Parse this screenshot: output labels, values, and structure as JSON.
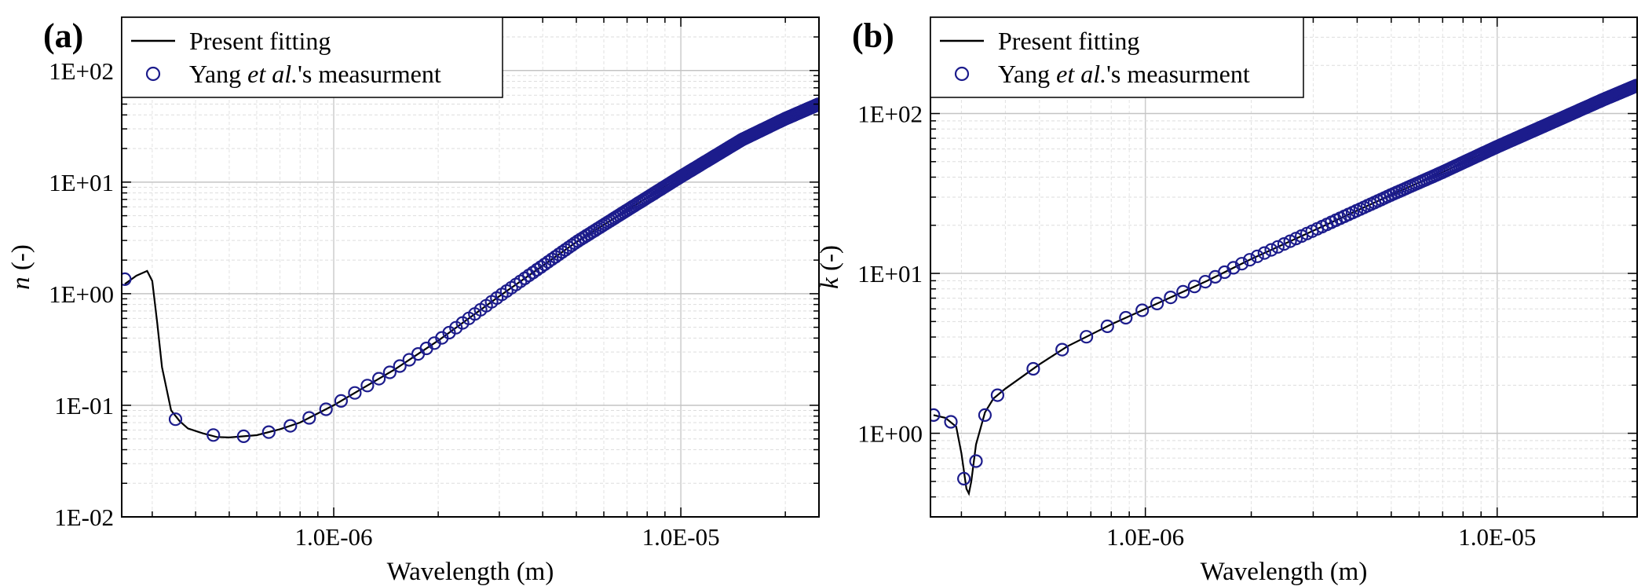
{
  "chart_data": [
    {
      "type": "line",
      "panel_label": "(a)",
      "xlabel": "Wavelength (m)",
      "ylabel_symbol": "n",
      "ylabel_unit": " (-)",
      "xscale": "log",
      "yscale": "log",
      "xlim": [
        2.45e-07,
        2.5e-05
      ],
      "ylim": [
        0.01,
        300
      ],
      "x_ticks": [
        {
          "value": 1e-06,
          "label": "1.0E-06"
        },
        {
          "value": 1e-05,
          "label": "1.0E-05"
        }
      ],
      "y_ticks": [
        {
          "value": 0.01,
          "label": "1E-02"
        },
        {
          "value": 0.1,
          "label": "1E-01"
        },
        {
          "value": 1,
          "label": "1E+00"
        },
        {
          "value": 10,
          "label": "1E+01"
        },
        {
          "value": 100,
          "label": "1E+02"
        }
      ],
      "grid": true,
      "legend_position": "top-left",
      "series": [
        {
          "name": "Present fitting",
          "style": "line",
          "color": "#000000",
          "points": [
            [
              2.5e-07,
              1.22
            ],
            [
              2.7e-07,
              1.45
            ],
            [
              2.9e-07,
              1.6
            ],
            [
              3e-07,
              1.3
            ],
            [
              3.1e-07,
              0.55
            ],
            [
              3.2e-07,
              0.22
            ],
            [
              3.4e-07,
              0.09
            ],
            [
              3.6e-07,
              0.072
            ],
            [
              3.8e-07,
              0.062
            ],
            [
              4.2e-07,
              0.056
            ],
            [
              4.6e-07,
              0.052
            ],
            [
              5e-07,
              0.0515
            ],
            [
              6e-07,
              0.054
            ],
            [
              7e-07,
              0.061
            ],
            [
              8e-07,
              0.07
            ],
            [
              1e-06,
              0.1
            ],
            [
              1.5e-06,
              0.21
            ],
            [
              2e-06,
              0.38
            ],
            [
              3e-06,
              0.95
            ],
            [
              5e-06,
              2.9
            ],
            [
              7e-06,
              5.6
            ],
            [
              1e-05,
              11.2
            ],
            [
              1.5e-05,
              24
            ],
            [
              2e-05,
              37
            ],
            [
              2.5e-05,
              50
            ]
          ]
        },
        {
          "name": "Yang et al.'s measurment",
          "name_parts": [
            "Yang ",
            "et al.",
            "'s measurment"
          ],
          "style": "markers",
          "marker": "open-circle",
          "color": "#1c1c8c",
          "x_start": 2.5e-07,
          "x_step": 1e-07,
          "x_stop": 2.5e-05,
          "curve": [
            [
              2.5e-07,
              1.35
            ],
            [
              2.9e-07,
              1.6
            ],
            [
              3.05e-07,
              0.9
            ],
            [
              3.2e-07,
              0.22
            ],
            [
              3.5e-07,
              0.075
            ],
            [
              3.8e-07,
              0.062
            ],
            [
              4.2e-07,
              0.056
            ],
            [
              5e-07,
              0.0515
            ],
            [
              6e-07,
              0.054
            ],
            [
              7e-07,
              0.061
            ],
            [
              8e-07,
              0.07
            ],
            [
              1e-06,
              0.1
            ],
            [
              1.5e-06,
              0.21
            ],
            [
              2e-06,
              0.38
            ],
            [
              3e-06,
              0.95
            ],
            [
              5e-06,
              2.9
            ],
            [
              7e-06,
              5.6
            ],
            [
              1e-05,
              11.2
            ],
            [
              1.5e-05,
              24
            ],
            [
              2e-05,
              37
            ],
            [
              2.5e-05,
              50
            ]
          ]
        }
      ]
    },
    {
      "type": "line",
      "panel_label": "(b)",
      "xlabel": "Wavelength (m)",
      "ylabel_symbol": "k",
      "ylabel_unit": " (-)",
      "xscale": "log",
      "yscale": "log",
      "xlim": [
        2.45e-07,
        2.5e-05
      ],
      "ylim": [
        0.3,
        400
      ],
      "x_ticks": [
        {
          "value": 1e-06,
          "label": "1.0E-06"
        },
        {
          "value": 1e-05,
          "label": "1.0E-05"
        }
      ],
      "y_ticks": [
        {
          "value": 1,
          "label": "1E+00"
        },
        {
          "value": 10,
          "label": "1E+01"
        },
        {
          "value": 100,
          "label": "1E+02"
        }
      ],
      "grid": true,
      "legend_position": "top-left",
      "series": [
        {
          "name": "Present fitting",
          "style": "line",
          "color": "#000000",
          "points": [
            [
              2.5e-07,
              1.3
            ],
            [
              2.7e-07,
              1.25
            ],
            [
              2.9e-07,
              1.1
            ],
            [
              3e-07,
              0.75
            ],
            [
              3.1e-07,
              0.45
            ],
            [
              3.15e-07,
              0.42
            ],
            [
              3.2e-07,
              0.5
            ],
            [
              3.3e-07,
              0.85
            ],
            [
              3.5e-07,
              1.35
            ],
            [
              3.7e-07,
              1.65
            ],
            [
              4e-07,
              1.9
            ],
            [
              5e-07,
              2.7
            ],
            [
              6e-07,
              3.5
            ],
            [
              8e-07,
              4.8
            ],
            [
              1e-06,
              6.0
            ],
            [
              1.5e-06,
              9.0
            ],
            [
              2e-06,
              12.3
            ],
            [
              3e-06,
              18.5
            ],
            [
              5e-06,
              31
            ],
            [
              7e-06,
              43
            ],
            [
              1e-05,
              62
            ],
            [
              1.5e-05,
              92
            ],
            [
              2e-05,
              122
            ],
            [
              2.5e-05,
              150
            ]
          ]
        },
        {
          "name": "Yang et al.'s measurment",
          "name_parts": [
            "Yang ",
            "et al.",
            "'s measurment"
          ],
          "style": "markers",
          "marker": "open-circle",
          "color": "#1c1c8c",
          "explicit": [
            [
              2.5e-07,
              1.3
            ],
            [
              2.8e-07,
              1.18
            ],
            [
              3.05e-07,
              0.52
            ],
            [
              3.3e-07,
              0.67
            ],
            [
              3.5e-07,
              1.3
            ]
          ],
          "x_start": 3.8e-07,
          "x_step": 1e-07,
          "x_stop": 2.5e-05,
          "curve": [
            [
              3.5e-07,
              1.35
            ],
            [
              3.7e-07,
              1.65
            ],
            [
              4e-07,
              1.9
            ],
            [
              5e-07,
              2.7
            ],
            [
              6e-07,
              3.5
            ],
            [
              8e-07,
              4.8
            ],
            [
              1e-06,
              6.0
            ],
            [
              1.5e-06,
              9.0
            ],
            [
              2e-06,
              12.3
            ],
            [
              3e-06,
              18.5
            ],
            [
              5e-06,
              31
            ],
            [
              7e-06,
              43
            ],
            [
              1e-05,
              62
            ],
            [
              1.5e-05,
              92
            ],
            [
              2e-05,
              122
            ],
            [
              2.5e-05,
              150
            ]
          ]
        }
      ]
    }
  ]
}
